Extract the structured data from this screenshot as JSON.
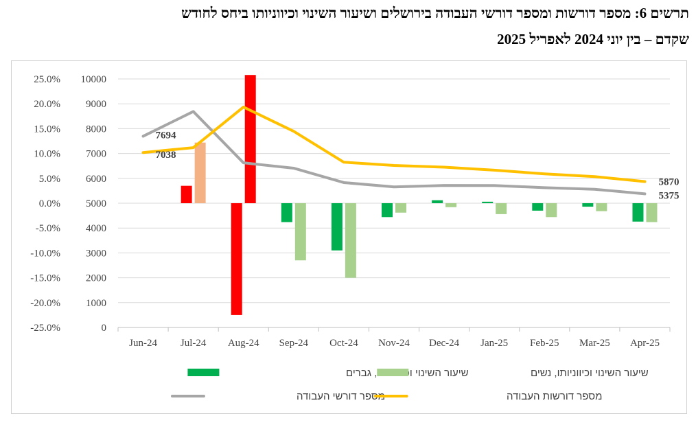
{
  "title_line1": "תרשים 6: מספר דורשות ומספר דורשי העבודה בירושלים ושיעור השינוי וכיווניותו ביחס לחודש",
  "title_line2": "שקדם – בין יוני 2024 לאפריל 2025",
  "chart_data": {
    "type": "bar+line",
    "categories": [
      "Jun-24",
      "Jul-24",
      "Aug-24",
      "Sep-24",
      "Oct-24",
      "Nov-24",
      "Dec-24",
      "Jan-25",
      "Feb-25",
      "Mar-25",
      "Apr-25"
    ],
    "left_axis": {
      "min": -25,
      "max": 25,
      "step": 5,
      "unit": "%",
      "tick_labels": [
        "25.0%",
        "20.0%",
        "15.0%",
        "10.0%",
        "5.0%",
        "0.0%",
        "-5.0%",
        "-10.0%",
        "-15.0%",
        "-20.0%",
        "-25.0%"
      ]
    },
    "right_axis": {
      "min": 0,
      "max": 10000,
      "step": 1000,
      "tick_labels": [
        "10000",
        "9000",
        "8000",
        "7000",
        "6000",
        "5000",
        "4000",
        "3000",
        "2000",
        "1000",
        "0"
      ]
    },
    "bar_series": [
      {
        "name": "שיעור השינוי וכיווניותו, גברים",
        "color": "#00b050",
        "values": [
          null,
          3.5,
          -22.5,
          -3.8,
          -9.5,
          -2.8,
          0.6,
          0.3,
          -1.5,
          -0.7,
          -3.7
        ],
        "colors_override": {
          "1": "#ff0000",
          "2": "#ff0000"
        }
      },
      {
        "name": "שיעור השינוי וכיווניותו, נשים",
        "color": "#a9d18e",
        "values": [
          null,
          12.2,
          25.8,
          -11.5,
          -15.0,
          -1.9,
          -0.8,
          -2.2,
          -2.8,
          -1.6,
          -3.8
        ],
        "colors_override": {
          "1": "#f4b183",
          "2": "#ff0000"
        }
      }
    ],
    "line_series": [
      {
        "name": "מספר דורשי העבודה",
        "color": "#a6a6a6",
        "values": [
          7694,
          8690,
          6625,
          6410,
          5830,
          5655,
          5715,
          5710,
          5625,
          5560,
          5375
        ]
      },
      {
        "name": "מספר דורשות העבודה",
        "color": "#ffc000",
        "values": [
          7038,
          7235,
          8870,
          7895,
          6650,
          6520,
          6450,
          6330,
          6180,
          6070,
          5870
        ]
      }
    ],
    "data_labels": {
      "start_men": "7694",
      "start_women": "7038",
      "end_women": "5870",
      "end_men": "5375"
    },
    "gridlines": true,
    "legend_position": "bottom"
  }
}
